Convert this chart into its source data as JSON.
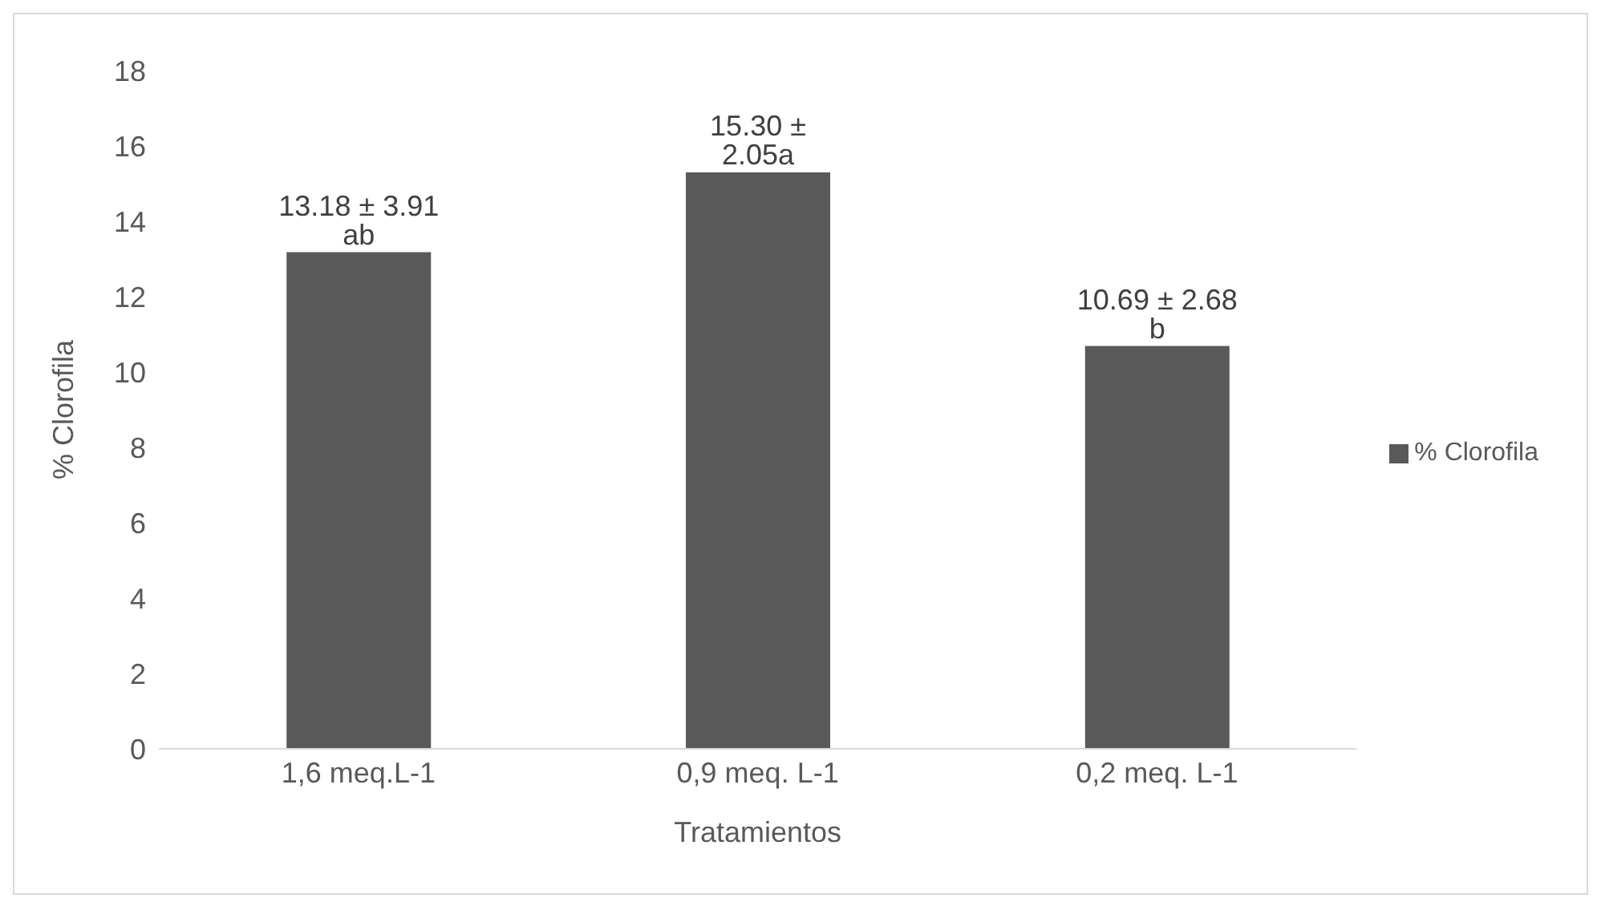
{
  "chart_data": {
    "type": "bar",
    "xlabel": "Tratamientos",
    "ylabel": "% Clorofila",
    "categories": [
      "1,6 meq.L-1",
      "0,9 meq. L-1",
      "0,2 meq. L-1"
    ],
    "series": [
      {
        "name": "% Clorofila",
        "color": "#595959",
        "values": [
          13.18,
          15.3,
          10.69
        ]
      }
    ],
    "value_labels": [
      "13.18 ± 3.91 ab",
      "15.30 ± 2.05a",
      "10.69 ± 2.68  b"
    ],
    "ylim": [
      0,
      18
    ],
    "yticks": [
      0,
      2,
      4,
      6,
      8,
      10,
      12,
      14,
      16,
      18
    ],
    "grid": false,
    "legend": "right"
  }
}
